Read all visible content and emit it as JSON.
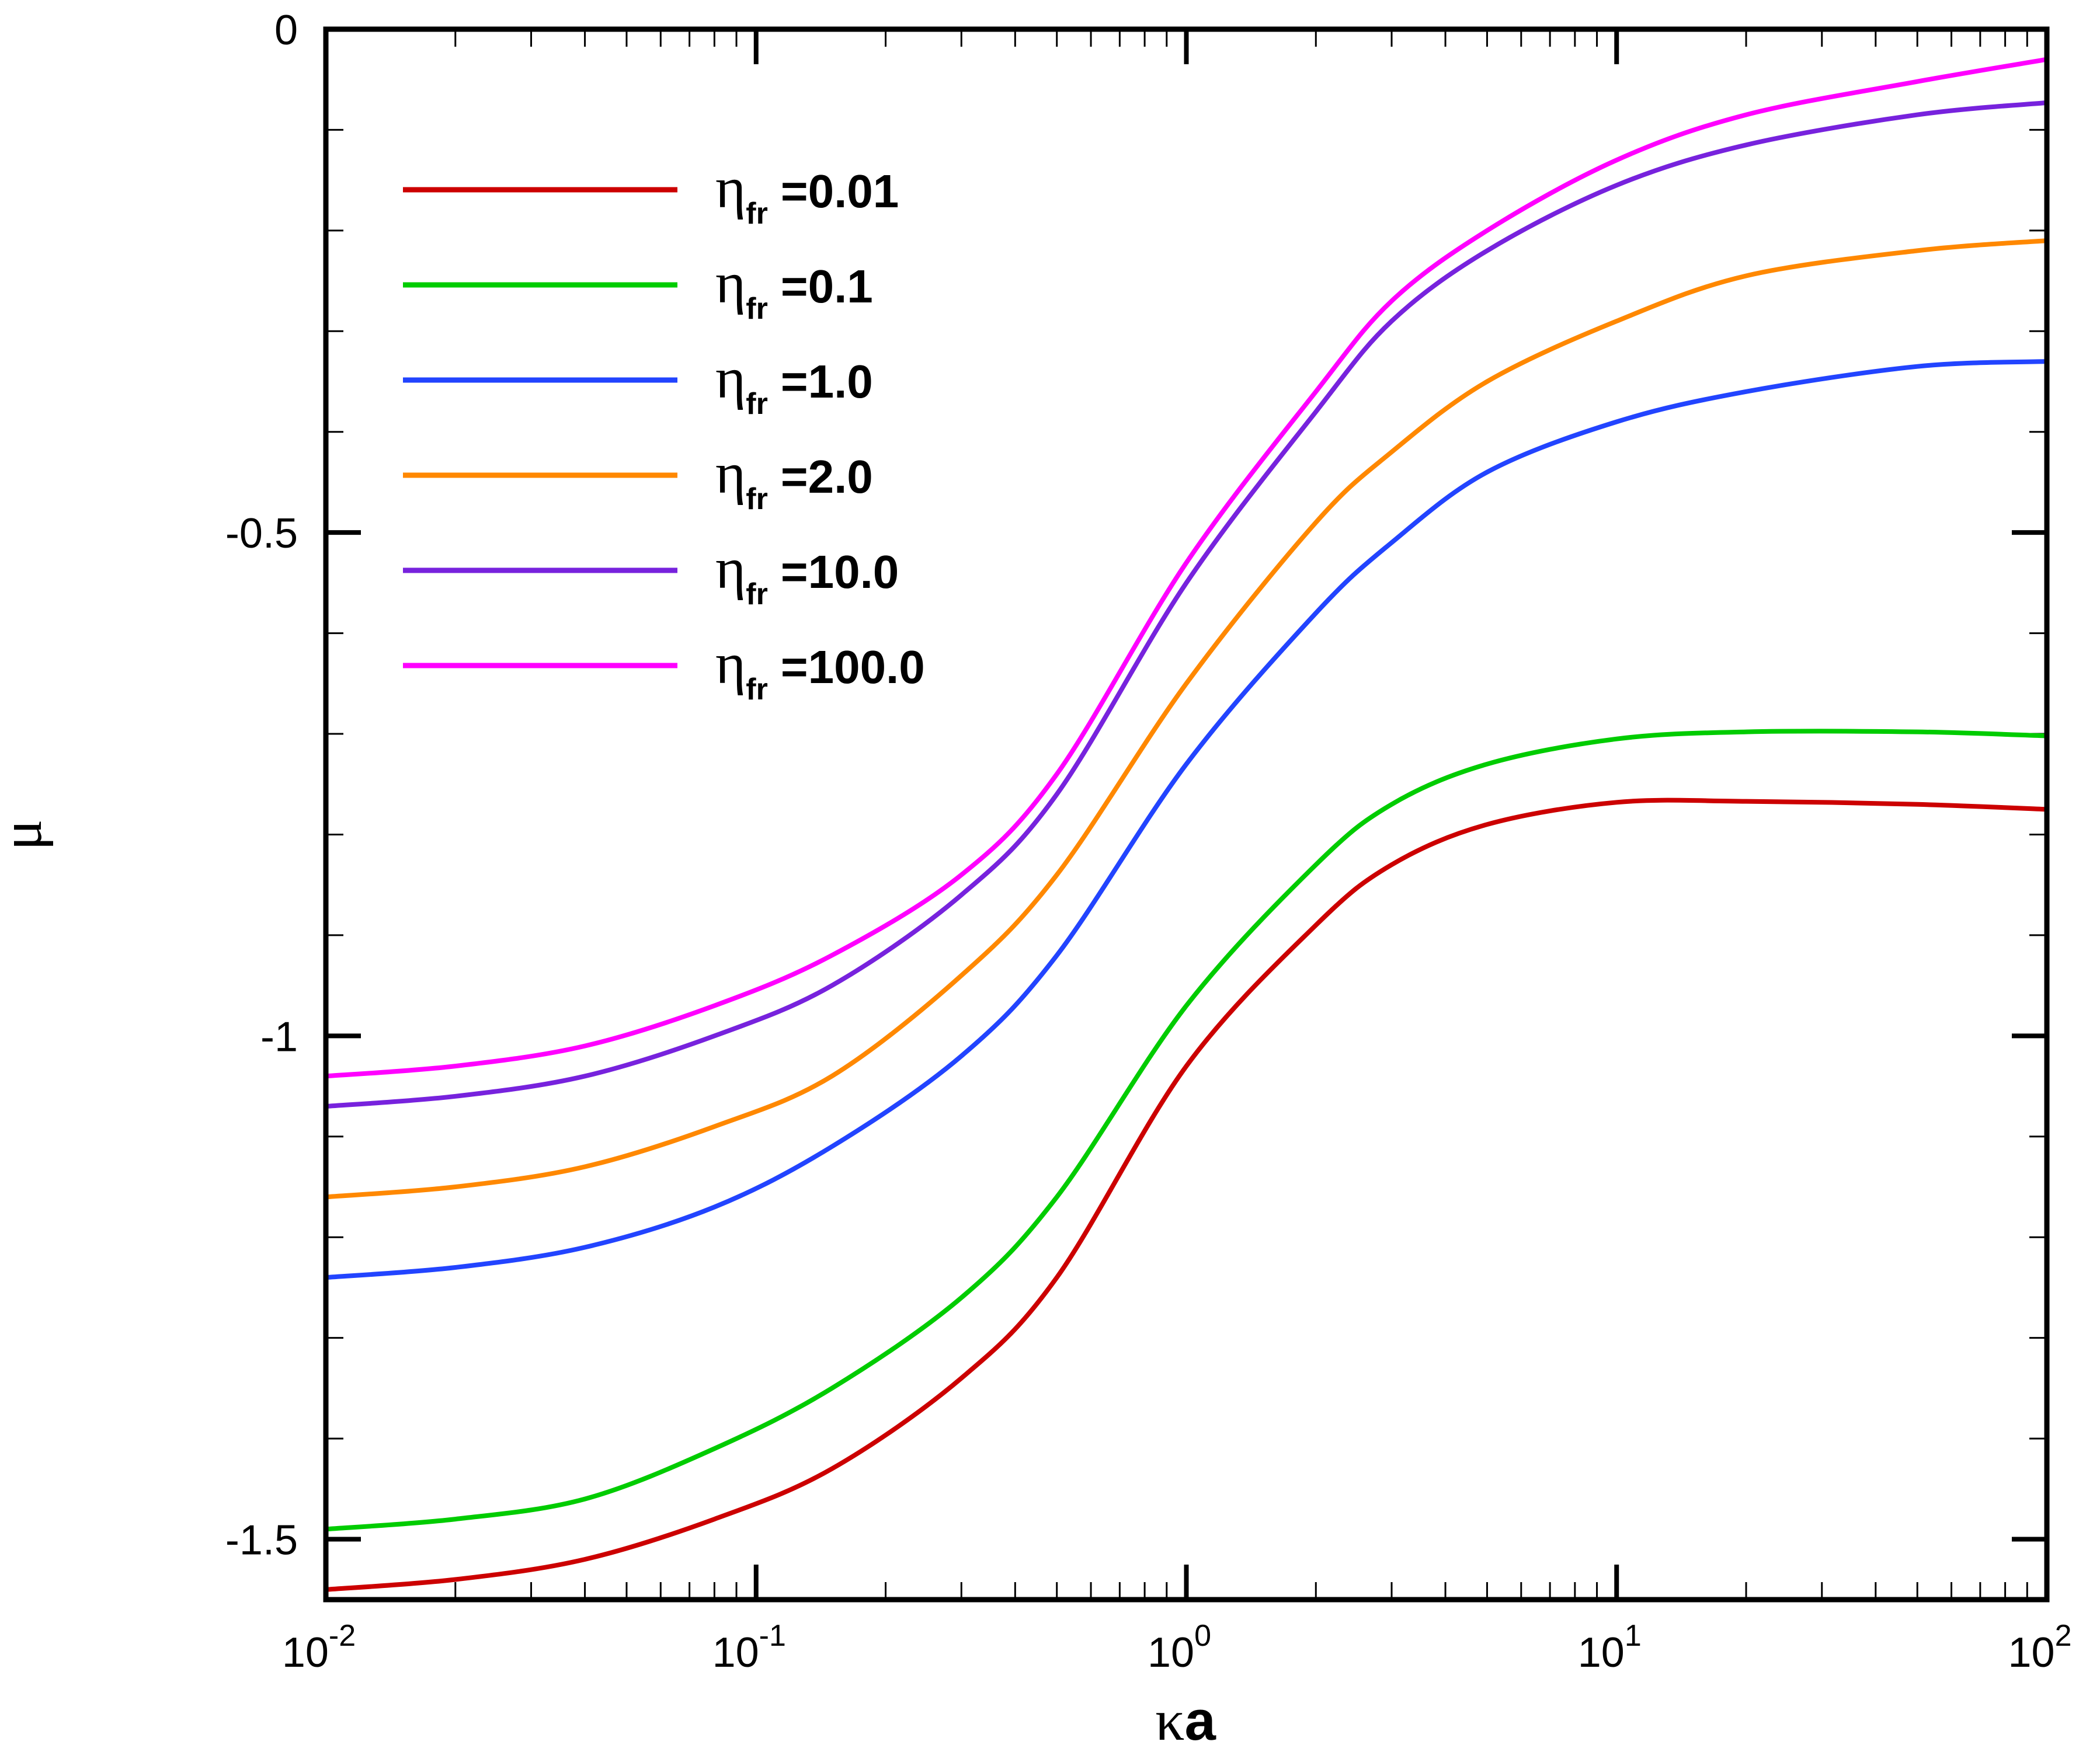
{
  "chart_data": {
    "type": "line",
    "title": "",
    "xlabel_symbol": "κ",
    "xlabel_main": "a",
    "ylabel": "μ",
    "xscale": "log",
    "xlim": [
      0.01,
      100
    ],
    "ylim": [
      -1.56,
      0
    ],
    "x_ticks": [
      {
        "value": 0.01,
        "base": "10",
        "exp": "-2"
      },
      {
        "value": 0.1,
        "base": "10",
        "exp": "-1"
      },
      {
        "value": 1,
        "base": "10",
        "exp": "0"
      },
      {
        "value": 10,
        "base": "10",
        "exp": "1"
      },
      {
        "value": 100,
        "base": "10",
        "exp": "2"
      }
    ],
    "y_ticks": [
      {
        "value": 0,
        "label": "0"
      },
      {
        "value": -0.5,
        "label": "-0.5"
      },
      {
        "value": -1,
        "label": "-1"
      },
      {
        "value": -1.5,
        "label": "-1.5"
      }
    ],
    "y_minor_step": 0.1,
    "legend_position": "top-left",
    "x": [
      0.01,
      0.02,
      0.04,
      0.08,
      0.15,
      0.3,
      0.5,
      1,
      2,
      3,
      5,
      10,
      20,
      50,
      100
    ],
    "series": [
      {
        "name": "η",
        "subscript": "fr",
        "label": "=0.01",
        "color": "#cc0000",
        "values": [
          -1.55,
          -1.54,
          -1.52,
          -1.48,
          -1.43,
          -1.34,
          -1.24,
          -1.03,
          -0.89,
          -0.83,
          -0.79,
          -0.768,
          -0.767,
          -0.77,
          -0.775
        ]
      },
      {
        "name": "η",
        "subscript": "fr",
        "label": "=0.1",
        "color": "#00cc00",
        "values": [
          -1.49,
          -1.48,
          -1.46,
          -1.41,
          -1.35,
          -1.26,
          -1.16,
          -0.97,
          -0.83,
          -0.77,
          -0.73,
          -0.705,
          -0.698,
          -0.698,
          -0.702
        ]
      },
      {
        "name": "η",
        "subscript": "fr",
        "label": "=1.0",
        "color": "#2244ff",
        "values": [
          -1.24,
          -1.23,
          -1.21,
          -1.17,
          -1.11,
          -1.02,
          -0.92,
          -0.73,
          -0.58,
          -0.51,
          -0.44,
          -0.39,
          -0.36,
          -0.335,
          -0.33
        ]
      },
      {
        "name": "η",
        "subscript": "fr",
        "label": "=2.0",
        "color": "#ff8800",
        "values": [
          -1.16,
          -1.15,
          -1.13,
          -1.09,
          -1.04,
          -0.94,
          -0.84,
          -0.65,
          -0.49,
          -0.42,
          -0.35,
          -0.29,
          -0.245,
          -0.22,
          -0.21
        ]
      },
      {
        "name": "η",
        "subscript": "fr",
        "label": "=10.0",
        "color": "#7722dd",
        "values": [
          -1.07,
          -1.06,
          -1.04,
          -1.0,
          -0.95,
          -0.86,
          -0.76,
          -0.55,
          -0.38,
          -0.29,
          -0.22,
          -0.155,
          -0.115,
          -0.085,
          -0.073
        ]
      },
      {
        "name": "η",
        "subscript": "fr",
        "label": "=100.0",
        "color": "#ff00ff",
        "values": [
          -1.04,
          -1.03,
          -1.01,
          -0.97,
          -0.92,
          -0.84,
          -0.74,
          -0.53,
          -0.36,
          -0.27,
          -0.2,
          -0.13,
          -0.085,
          -0.052,
          -0.03
        ]
      }
    ]
  }
}
